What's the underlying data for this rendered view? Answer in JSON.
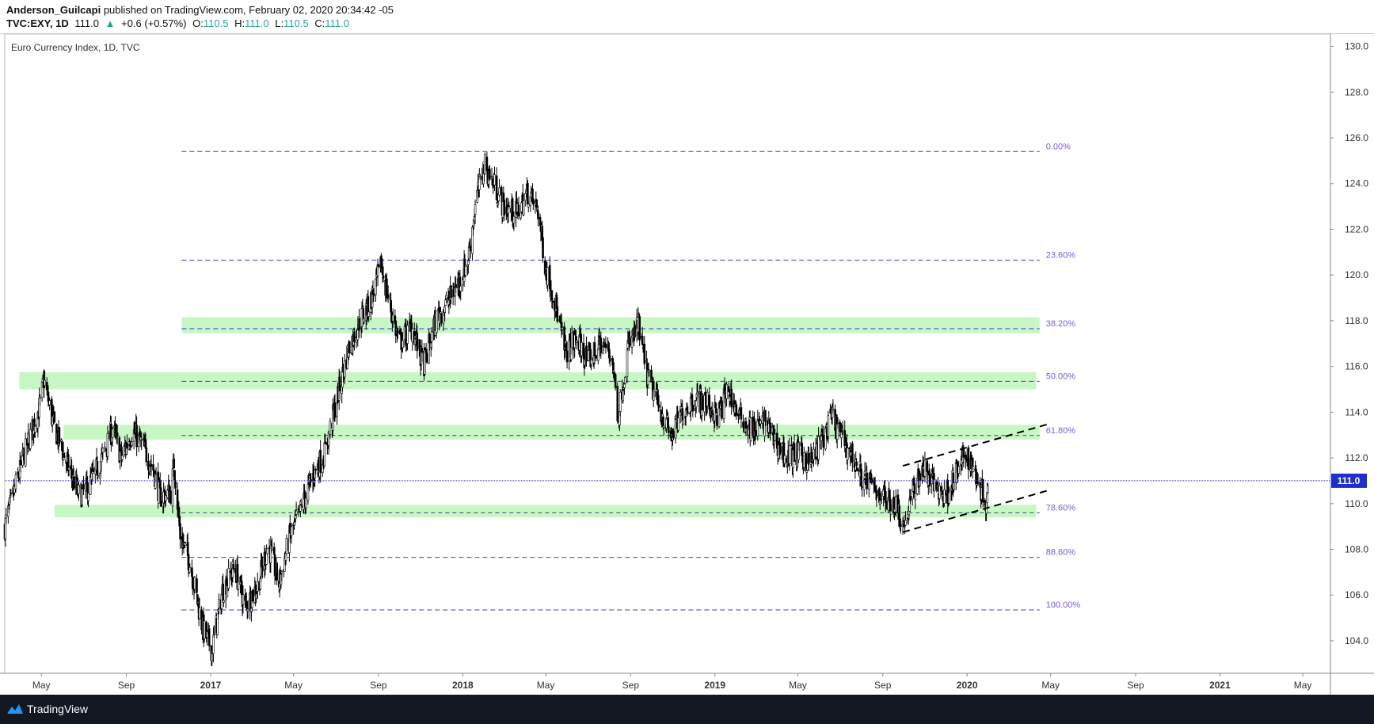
{
  "header": {
    "author": "Anderson_Guilcapi",
    "published_text": "published on TradingView.com, February 02, 2020 20:34:42 -05",
    "symbol": "TVC:EXY, 1D",
    "last": "111.0",
    "change_arrow": "▲",
    "change": "+0.6 (+0.57%)",
    "open_label": "O:",
    "open": "110.5",
    "high_label": "H:",
    "high": "111.0",
    "low_label": "L:",
    "low": "110.5",
    "close_label": "C:",
    "close": "111.0"
  },
  "footer": {
    "brand": "TradingView"
  },
  "colors": {
    "candle": "#000000",
    "fib_line": "#3a3ad6",
    "fib_label": "#7b5be0",
    "zone": "#c8f7c5",
    "price_line": "#2323d6",
    "price_badge": "#1f2ecf",
    "axis_text": "#333333",
    "footer_bg": "#131722",
    "logo": "#2196f3"
  },
  "chart_data": {
    "type": "candlestick",
    "title": "Euro Currency Index, 1D, TVC",
    "ylim": [
      102.3,
      130.4
    ],
    "y_ticks": [
      104.0,
      106.0,
      108.0,
      110.0,
      112.0,
      114.0,
      116.0,
      118.0,
      120.0,
      122.0,
      124.0,
      126.0,
      128.0,
      130.0
    ],
    "x_range": [
      "2016-03-09",
      "2021-06-10"
    ],
    "x_ticks": [
      {
        "label": "May",
        "date": "2016-05-01",
        "bold": false
      },
      {
        "label": "Sep",
        "date": "2016-09-01",
        "bold": false
      },
      {
        "label": "2017",
        "date": "2017-01-01",
        "bold": true
      },
      {
        "label": "May",
        "date": "2017-05-01",
        "bold": false
      },
      {
        "label": "Sep",
        "date": "2017-09-01",
        "bold": false
      },
      {
        "label": "2018",
        "date": "2018-01-01",
        "bold": true
      },
      {
        "label": "May",
        "date": "2018-05-01",
        "bold": false
      },
      {
        "label": "Sep",
        "date": "2018-09-01",
        "bold": false
      },
      {
        "label": "2019",
        "date": "2019-01-01",
        "bold": true
      },
      {
        "label": "May",
        "date": "2019-05-01",
        "bold": false
      },
      {
        "label": "Sep",
        "date": "2019-09-01",
        "bold": false
      },
      {
        "label": "2020",
        "date": "2020-01-01",
        "bold": true
      },
      {
        "label": "May",
        "date": "2020-05-01",
        "bold": false
      },
      {
        "label": "Sep",
        "date": "2020-09-01",
        "bold": false
      },
      {
        "label": "2021",
        "date": "2021-01-01",
        "bold": true
      },
      {
        "label": "May",
        "date": "2021-05-01",
        "bold": false
      }
    ],
    "last_price": 111.0,
    "last_price_label": "111.0",
    "fib_levels": [
      {
        "label": "0.00%",
        "price": 125.4,
        "dash": "dense"
      },
      {
        "label": "23.60%",
        "price": 120.65,
        "dash": "dense"
      },
      {
        "label": "38.20%",
        "price": 117.65,
        "dash": "dense"
      },
      {
        "label": "50.00%",
        "price": 115.35,
        "dash": "dense"
      },
      {
        "label": "61.80%",
        "price": 112.98,
        "dash": "sparse"
      },
      {
        "label": "78.60%",
        "price": 109.6,
        "dash": "sparse"
      },
      {
        "label": "88.60%",
        "price": 107.65,
        "dash": "dense"
      },
      {
        "label": "100.00%",
        "price": 105.35,
        "dash": "dense"
      }
    ],
    "fib_start": "2016-11-20",
    "fib_end": "2020-04-15",
    "zones": [
      {
        "from": "2016-11-20",
        "to": "2020-04-15",
        "y1": 117.45,
        "y2": 118.15
      },
      {
        "from": "2016-03-30",
        "to": "2020-04-10",
        "y1": 115.0,
        "y2": 115.75
      },
      {
        "from": "2016-06-02",
        "to": "2020-04-15",
        "y1": 112.8,
        "y2": 113.45
      },
      {
        "from": "2016-05-20",
        "to": "2020-04-10",
        "y1": 109.4,
        "y2": 109.95
      }
    ],
    "channel_lines": [
      {
        "from": "2019-09-30",
        "from_price": 108.75,
        "to": "2020-04-30",
        "to_price": 110.6
      },
      {
        "from": "2019-09-30",
        "from_price": 111.65,
        "to": "2020-04-30",
        "to_price": 113.5
      }
    ],
    "close_path": [
      [
        "2016-03-09",
        109.0
      ],
      [
        "2016-03-25",
        110.8
      ],
      [
        "2016-04-10",
        112.5
      ],
      [
        "2016-04-28",
        114.2
      ],
      [
        "2016-05-05",
        115.4
      ],
      [
        "2016-05-18",
        113.5
      ],
      [
        "2016-06-10",
        111.5
      ],
      [
        "2016-06-25",
        110.3
      ],
      [
        "2016-07-10",
        110.8
      ],
      [
        "2016-08-01",
        112.3
      ],
      [
        "2016-08-12",
        113.3
      ],
      [
        "2016-08-25",
        112.0
      ],
      [
        "2016-09-10",
        113.2
      ],
      [
        "2016-09-25",
        112.5
      ],
      [
        "2016-10-10",
        111.5
      ],
      [
        "2016-10-20",
        110.3
      ],
      [
        "2016-11-05",
        110.5
      ],
      [
        "2016-11-09",
        111.8
      ],
      [
        "2016-11-18",
        108.6
      ],
      [
        "2016-12-01",
        107.5
      ],
      [
        "2016-12-10",
        106.2
      ],
      [
        "2016-12-20",
        104.6
      ],
      [
        "2017-01-03",
        103.6
      ],
      [
        "2017-01-18",
        106.2
      ],
      [
        "2017-02-05",
        107.2
      ],
      [
        "2017-02-20",
        105.5
      ],
      [
        "2017-03-10",
        106.4
      ],
      [
        "2017-03-25",
        108.2
      ],
      [
        "2017-04-10",
        106.5
      ],
      [
        "2017-04-25",
        108.5
      ],
      [
        "2017-05-10",
        109.6
      ],
      [
        "2017-05-30",
        111.3
      ],
      [
        "2017-06-15",
        112.2
      ],
      [
        "2017-06-30",
        114.2
      ],
      [
        "2017-07-20",
        116.8
      ],
      [
        "2017-08-05",
        118.0
      ],
      [
        "2017-08-20",
        118.8
      ],
      [
        "2017-09-05",
        120.4
      ],
      [
        "2017-09-15",
        119.0
      ],
      [
        "2017-10-01",
        117.0
      ],
      [
        "2017-10-20",
        117.7
      ],
      [
        "2017-11-05",
        116.0
      ],
      [
        "2017-11-25",
        118.2
      ],
      [
        "2017-12-10",
        118.8
      ],
      [
        "2017-12-28",
        119.8
      ],
      [
        "2018-01-08",
        120.6
      ],
      [
        "2018-01-20",
        123.2
      ],
      [
        "2018-02-01",
        124.8
      ],
      [
        "2018-02-15",
        124.0
      ],
      [
        "2018-03-01",
        123.0
      ],
      [
        "2018-03-20",
        122.7
      ],
      [
        "2018-04-05",
        123.6
      ],
      [
        "2018-04-20",
        122.8
      ],
      [
        "2018-05-01",
        120.3
      ],
      [
        "2018-05-15",
        118.8
      ],
      [
        "2018-05-29",
        116.6
      ],
      [
        "2018-06-15",
        117.2
      ],
      [
        "2018-07-01",
        116.2
      ],
      [
        "2018-07-20",
        117.0
      ],
      [
        "2018-08-05",
        116.5
      ],
      [
        "2018-08-14",
        113.8
      ],
      [
        "2018-08-28",
        116.8
      ],
      [
        "2018-09-12",
        117.8
      ],
      [
        "2018-09-25",
        115.6
      ],
      [
        "2018-10-10",
        114.4
      ],
      [
        "2018-10-30",
        112.9
      ],
      [
        "2018-11-15",
        114.0
      ],
      [
        "2018-12-01",
        114.6
      ],
      [
        "2018-12-20",
        114.4
      ],
      [
        "2019-01-05",
        113.8
      ],
      [
        "2019-01-20",
        115.0
      ],
      [
        "2019-02-05",
        113.8
      ],
      [
        "2019-02-25",
        113.2
      ],
      [
        "2019-03-15",
        113.6
      ],
      [
        "2019-04-01",
        112.6
      ],
      [
        "2019-04-15",
        112.0
      ],
      [
        "2019-05-01",
        112.2
      ],
      [
        "2019-05-20",
        111.8
      ],
      [
        "2019-06-05",
        112.8
      ],
      [
        "2019-06-20",
        113.8
      ],
      [
        "2019-07-01",
        113.0
      ],
      [
        "2019-07-15",
        112.3
      ],
      [
        "2019-08-01",
        111.2
      ],
      [
        "2019-08-20",
        110.7
      ],
      [
        "2019-09-05",
        110.2
      ],
      [
        "2019-09-20",
        110.0
      ],
      [
        "2019-10-01",
        109.0
      ],
      [
        "2019-10-15",
        110.5
      ],
      [
        "2019-10-28",
        111.6
      ],
      [
        "2019-11-10",
        111.0
      ],
      [
        "2019-11-30",
        110.3
      ],
      [
        "2019-12-15",
        111.2
      ],
      [
        "2019-12-31",
        112.2
      ],
      [
        "2020-01-15",
        111.2
      ],
      [
        "2020-01-28",
        110.1
      ],
      [
        "2020-02-01",
        111.0
      ]
    ]
  }
}
